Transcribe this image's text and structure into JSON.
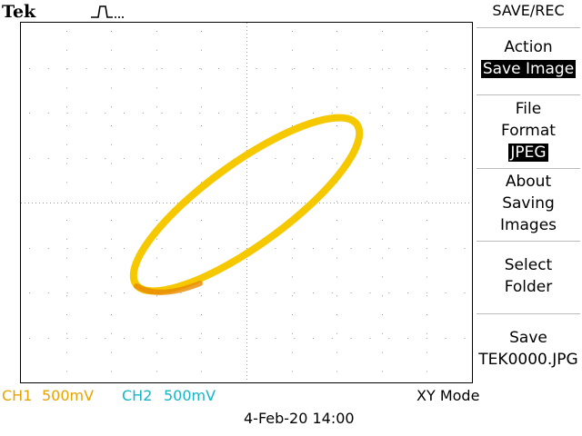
{
  "header": {
    "brand": "Tek",
    "trigger_icon": "pulse-trigger-icon"
  },
  "menu": {
    "title": "SAVE/REC",
    "action": {
      "label": "Action",
      "value": "Save Image"
    },
    "file_format": {
      "label_line1": "File",
      "label_line2": "Format",
      "value": "JPEG"
    },
    "about": {
      "line1": "About",
      "line2": "Saving",
      "line3": "Images"
    },
    "select_folder": {
      "line1": "Select",
      "line2": "Folder"
    },
    "save": {
      "line1": "Save",
      "line2": "TEK0000.JPG"
    }
  },
  "status": {
    "ch1_label": "CH1",
    "ch1_scale": "500mV",
    "ch2_label": "CH2",
    "ch2_scale": "500mV",
    "mode": "XY Mode",
    "datetime": "4-Feb-20 14:00"
  },
  "colors": {
    "trace": "#f5c800",
    "trace_dim": "#e88a00",
    "ch1": "#e8a300",
    "ch2": "#15b5c9",
    "grid": "#9a9a9a"
  }
}
